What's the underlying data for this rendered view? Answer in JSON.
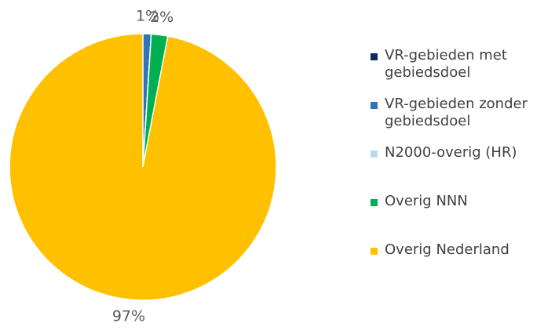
{
  "chart_data": {
    "type": "pie",
    "categories": [
      "VR-gebieden met gebiedsdoel",
      "VR-gebieden zonder gebiedsdoel",
      "N2000-overig (HR)",
      "Overig NNN",
      "Overig Nederland"
    ],
    "values": [
      0,
      1,
      0,
      2,
      97
    ],
    "value_labels": [
      null,
      "1%",
      null,
      "2%",
      "97%"
    ],
    "colors": [
      "#0d2a5c",
      "#2e75b6",
      "#bdd7ee",
      "#00b050",
      "#ffc000"
    ],
    "legend": "right"
  }
}
